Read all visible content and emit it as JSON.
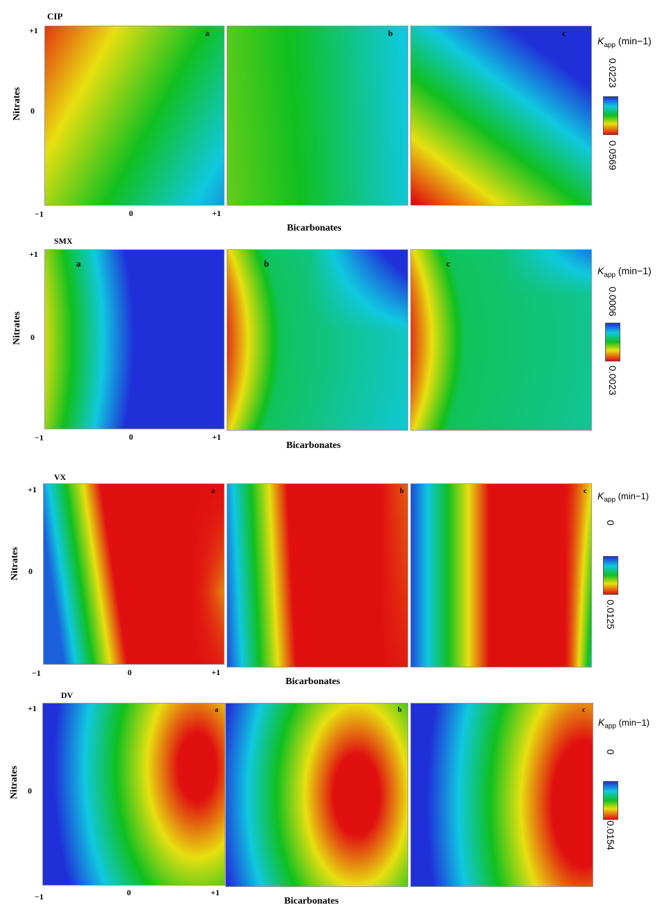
{
  "groups": [
    {
      "title": "CIP",
      "panel_labels": [
        "a",
        "b",
        "c"
      ],
      "y_ticks": [
        "+1",
        "0"
      ],
      "x_ticks": [
        "−1",
        "0",
        "+1"
      ],
      "ylabel": "Nitrates",
      "xlabel": "Bicarbonates",
      "colorbar": {
        "k": "K",
        "sub": "app",
        "unit": "(min−1)",
        "top": "0.0223",
        "bottom": "0.0569"
      }
    },
    {
      "title": "SMX",
      "panel_labels": [
        "a",
        "b",
        "c"
      ],
      "y_ticks": [
        "+1",
        "0"
      ],
      "x_ticks": [
        "−1",
        "0",
        "+1"
      ],
      "ylabel": "Nitrates",
      "xlabel": "Bicarbonates",
      "colorbar": {
        "k": "K",
        "sub": "app",
        "unit": "(min−1)",
        "top": "0.0006",
        "bottom": "0.0023"
      }
    },
    {
      "title": "VX",
      "panel_labels": [
        "a",
        "b",
        "c"
      ],
      "y_ticks": [
        "+1",
        "0"
      ],
      "x_ticks": [
        "−1",
        "0",
        "+1"
      ],
      "ylabel": "Nitrates",
      "xlabel": "Bicarbonates",
      "colorbar": {
        "k": "K",
        "sub": "app",
        "unit": "(min−1)",
        "top": "0",
        "bottom": "0.0125"
      }
    },
    {
      "title": "DV",
      "panel_labels": [
        "a",
        "b",
        "c"
      ],
      "y_ticks": [
        "+1",
        "0"
      ],
      "x_ticks": [
        "−1",
        "0",
        "+1"
      ],
      "ylabel": "Nitrates",
      "xlabel": "Bicarbonates",
      "colorbar": {
        "k": "K",
        "sub": "app",
        "unit": "(min−1)",
        "top": "0",
        "bottom": "0.0154"
      }
    }
  ],
  "chart_data": [
    {
      "type": "heatmap",
      "title": "CIP",
      "xlabel": "Bicarbonates",
      "ylabel": "Nitrates",
      "xlim": [
        -1,
        1
      ],
      "ylim": [
        -1,
        1
      ],
      "panels": [
        "a",
        "b",
        "c"
      ],
      "colorbar_range": [
        0.0223,
        0.0569
      ],
      "colormap": [
        "#2030d8",
        "#10c8e0",
        "#10c020",
        "#e8e010",
        "#e01010"
      ]
    },
    {
      "type": "heatmap",
      "title": "SMX",
      "xlabel": "Bicarbonates",
      "ylabel": "Nitrates",
      "xlim": [
        -1,
        1
      ],
      "ylim": [
        -1,
        1
      ],
      "panels": [
        "a",
        "b",
        "c"
      ],
      "colorbar_range": [
        0.0006,
        0.0023
      ],
      "colormap": [
        "#2030d8",
        "#10c8e0",
        "#10c020",
        "#e8e010",
        "#e01010"
      ]
    },
    {
      "type": "heatmap",
      "title": "VX",
      "xlabel": "Bicarbonates",
      "ylabel": "Nitrates",
      "xlim": [
        -1,
        1
      ],
      "ylim": [
        -1,
        1
      ],
      "panels": [
        "a",
        "b",
        "c"
      ],
      "colorbar_range": [
        0,
        0.0125
      ],
      "colormap": [
        "#2030d8",
        "#10c8e0",
        "#10c020",
        "#e8e010",
        "#e01010"
      ]
    },
    {
      "type": "heatmap",
      "title": "DV",
      "xlabel": "Bicarbonates",
      "ylabel": "Nitrates",
      "xlim": [
        -1,
        1
      ],
      "ylim": [
        -1,
        1
      ],
      "panels": [
        "a",
        "b",
        "c"
      ],
      "colorbar_range": [
        0,
        0.0154
      ],
      "colormap": [
        "#2030d8",
        "#10c8e0",
        "#10c020",
        "#e8e010",
        "#e01010"
      ]
    }
  ]
}
